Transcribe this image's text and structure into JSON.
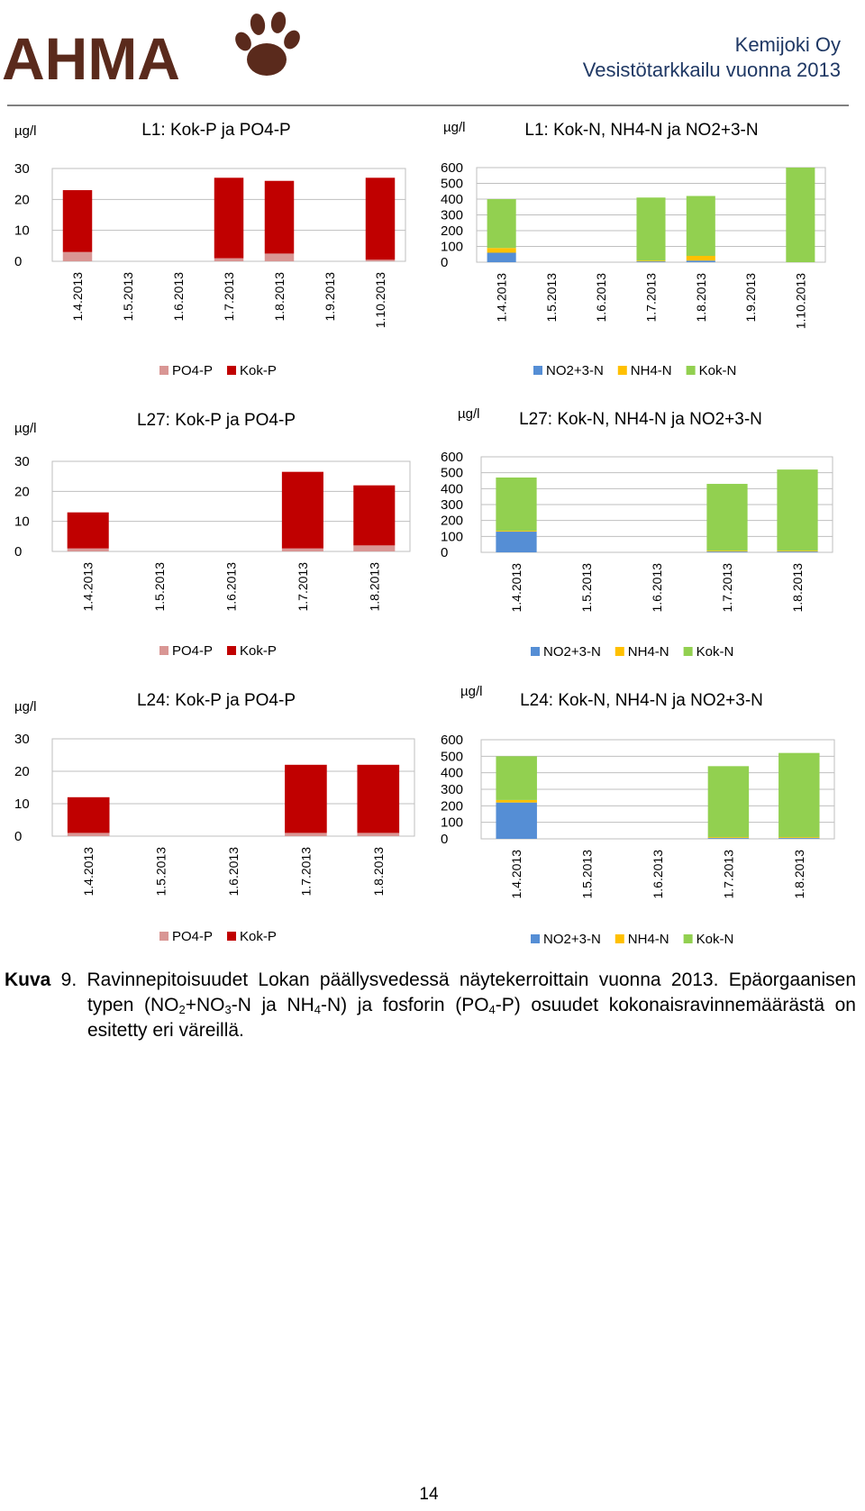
{
  "header": {
    "logo": "AHMA",
    "company": "Kemijoki Oy",
    "report": "Vesistötarkkailu vuonna 2013"
  },
  "chart_data": [
    {
      "type": "bar",
      "stacked": true,
      "grid": true,
      "unit": "µg/l",
      "title": "L1: Kok-P ja PO4-P",
      "categories": [
        "1.4.2013",
        "1.5.2013",
        "1.6.2013",
        "1.7.2013",
        "1.8.2013",
        "1.9.2013",
        "1.10.2013"
      ],
      "series": [
        {
          "name": "PO4-P",
          "color": "#d99694",
          "values": [
            3,
            null,
            null,
            1,
            2.5,
            null,
            0.5
          ]
        },
        {
          "name": "Kok-P",
          "color": "#c00000",
          "values": [
            20,
            null,
            null,
            26,
            23.5,
            null,
            26.5
          ]
        }
      ],
      "ylim": [
        0,
        30
      ],
      "yticks": [
        0,
        10,
        20,
        30
      ]
    },
    {
      "type": "bar",
      "stacked": true,
      "grid": true,
      "unit": "µg/l",
      "title": "L1: Kok-N, NH4-N ja NO2+3-N",
      "categories": [
        "1.4.2013",
        "1.5.2013",
        "1.6.2013",
        "1.7.2013",
        "1.8.2013",
        "1.9.2013",
        "1.10.2013"
      ],
      "series": [
        {
          "name": "NO2+3-N",
          "color": "#558ed5",
          "values": [
            60,
            null,
            null,
            5,
            10,
            null,
            0
          ]
        },
        {
          "name": "NH4-N",
          "color": "#ffc000",
          "values": [
            30,
            null,
            null,
            5,
            30,
            null,
            0
          ]
        },
        {
          "name": "Kok-N",
          "color": "#92d050",
          "values": [
            310,
            null,
            null,
            400,
            380,
            null,
            600
          ]
        }
      ],
      "ylim": [
        0,
        600
      ],
      "yticks": [
        0,
        100,
        200,
        300,
        400,
        500,
        600
      ]
    },
    {
      "type": "bar",
      "stacked": true,
      "grid": true,
      "unit": "µg/l",
      "title": "L27: Kok-P ja PO4-P",
      "categories": [
        "1.4.2013",
        "1.5.2013",
        "1.6.2013",
        "1.7.2013",
        "1.8.2013"
      ],
      "series": [
        {
          "name": "PO4-P",
          "color": "#d99694",
          "values": [
            1,
            null,
            null,
            1,
            2
          ]
        },
        {
          "name": "Kok-P",
          "color": "#c00000",
          "values": [
            12,
            null,
            null,
            25.5,
            20
          ]
        }
      ],
      "ylim": [
        0,
        30
      ],
      "yticks": [
        0,
        10,
        20,
        30
      ]
    },
    {
      "type": "bar",
      "stacked": true,
      "grid": true,
      "unit": "µg/l",
      "title": "L27: Kok-N, NH4-N ja NO2+3-N",
      "categories": [
        "1.4.2013",
        "1.5.2013",
        "1.6.2013",
        "1.7.2013",
        "1.8.2013"
      ],
      "series": [
        {
          "name": "NO2+3-N",
          "color": "#558ed5",
          "values": [
            130,
            null,
            null,
            5,
            5
          ]
        },
        {
          "name": "NH4-N",
          "color": "#ffc000",
          "values": [
            5,
            null,
            null,
            5,
            5
          ]
        },
        {
          "name": "Kok-N",
          "color": "#92d050",
          "values": [
            335,
            null,
            null,
            420,
            510
          ]
        }
      ],
      "ylim": [
        0,
        600
      ],
      "yticks": [
        0,
        100,
        200,
        300,
        400,
        500,
        600
      ]
    },
    {
      "type": "bar",
      "stacked": true,
      "grid": true,
      "unit": "µg/l",
      "title": "L24: Kok-P ja PO4-P",
      "categories": [
        "1.4.2013",
        "1.5.2013",
        "1.6.2013",
        "1.7.2013",
        "1.8.2013"
      ],
      "series": [
        {
          "name": "PO4-P",
          "color": "#d99694",
          "values": [
            1,
            null,
            null,
            1,
            1
          ]
        },
        {
          "name": "Kok-P",
          "color": "#c00000",
          "values": [
            11,
            null,
            null,
            21,
            21
          ]
        }
      ],
      "ylim": [
        0,
        30
      ],
      "yticks": [
        0,
        10,
        20,
        30
      ]
    },
    {
      "type": "bar",
      "stacked": true,
      "grid": true,
      "unit": "µg/l",
      "title": "L24: Kok-N, NH4-N ja NO2+3-N",
      "categories": [
        "1.4.2013",
        "1.5.2013",
        "1.6.2013",
        "1.7.2013",
        "1.8.2013"
      ],
      "series": [
        {
          "name": "NO2+3-N",
          "color": "#558ed5",
          "values": [
            220,
            null,
            null,
            5,
            5
          ]
        },
        {
          "name": "NH4-N",
          "color": "#ffc000",
          "values": [
            15,
            null,
            null,
            5,
            5
          ]
        },
        {
          "name": "Kok-N",
          "color": "#92d050",
          "values": [
            265,
            null,
            null,
            430,
            510
          ]
        }
      ],
      "ylim": [
        0,
        600
      ],
      "yticks": [
        0,
        100,
        200,
        300,
        400,
        500,
        600
      ]
    }
  ],
  "caption": {
    "label": "Kuva",
    "number": "9.",
    "parts": [
      "Ravinnepitoisuudet Lokan päällysvedessä näytekerroittain vuonna 2013. Epäorgaanisen typen (NO",
      "2",
      "+NO",
      "3",
      "-N ja NH",
      "4",
      "-N) ja fosforin (PO",
      "4",
      "-P) osuudet kokonaisravinnemäärästä on esitetty eri väreillä."
    ]
  },
  "page_number": "14"
}
